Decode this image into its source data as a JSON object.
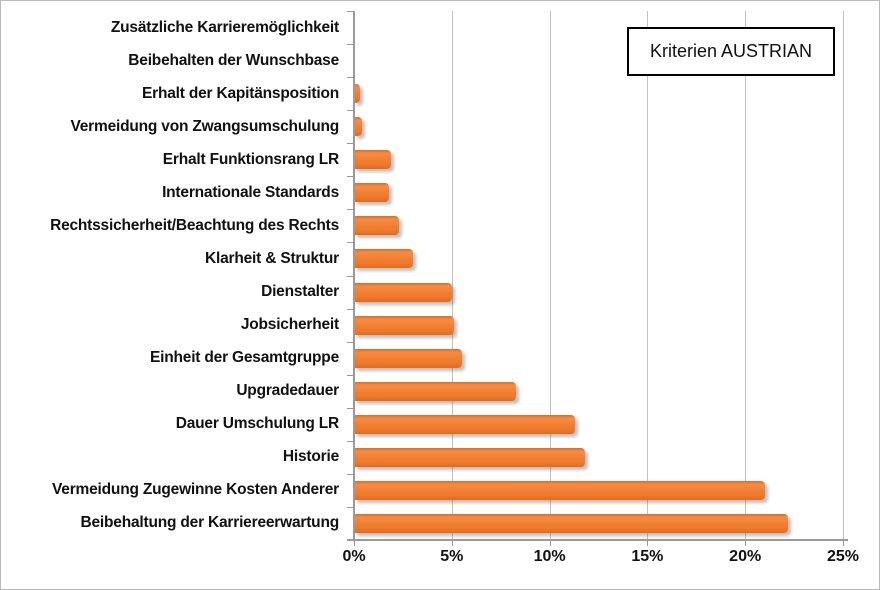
{
  "chart_data": {
    "type": "bar",
    "orientation": "horizontal",
    "title": "",
    "legend": {
      "label": "Kriterien AUSTRIAN",
      "position": "top-right"
    },
    "categories": [
      "Zusätzliche Karrieremöglichkeit",
      "Beibehalten der Wunschbase",
      "Erhalt der Kapitänsposition",
      "Vermeidung von Zwangsumschulung",
      "Erhalt Funktionsrang LR",
      "Internationale Standards",
      "Rechtssicherheit/Beachtung des Rechts",
      "Klarheit  & Struktur",
      "Dienstalter",
      "Jobsicherheit",
      "Einheit der Gesamtgruppe",
      "Upgradedauer",
      "Dauer Umschulung LR",
      "Historie",
      "Vermeidung Zugewinne Kosten Anderer",
      "Beibehaltung der Karriereerwartung"
    ],
    "values": [
      0,
      0,
      0.3,
      0.4,
      1.9,
      1.8,
      2.3,
      3.0,
      5.0,
      5.1,
      5.5,
      8.3,
      11.3,
      11.8,
      21.0,
      22.2
    ],
    "value_unit": "%",
    "x_ticks": [
      "0%",
      "5%",
      "10%",
      "15%",
      "20%",
      "25%"
    ],
    "x_tick_values": [
      0,
      5,
      10,
      15,
      20,
      25
    ],
    "xlim": [
      0,
      25
    ],
    "grid": "vertical major gridlines on",
    "colors": {
      "bar": "#ED7D31",
      "axis": "#9A9A9A",
      "gridline": "#C2C2C2",
      "label_text": "#111111",
      "legend_border": "#000000",
      "background": "#FFFFFF"
    }
  }
}
